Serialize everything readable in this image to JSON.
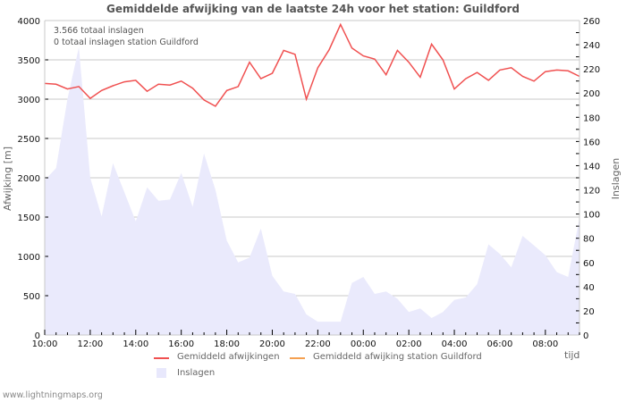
{
  "header": {
    "title": "Gemiddelde afwijking van de laatste 24h voor het station: Guildford"
  },
  "info": {
    "line1": "3.566 totaal inslagen",
    "line2": "0 totaal inslagen station Guildford"
  },
  "axes": {
    "left_title": "Afwijking  [m]",
    "right_title": "Inslagen",
    "x_title": "tijd"
  },
  "legend": {
    "items": [
      {
        "label": "Gemiddeld afwijkingen",
        "color": "#f05050"
      },
      {
        "label": "Gemiddeld afwijking station Guildford",
        "color": "#f5a050"
      },
      {
        "label": "Inslagen",
        "color": "#e8e8fc"
      }
    ]
  },
  "footer": {
    "credit": "www.lightningmaps.org"
  },
  "colors": {
    "deviation_line": "#f05050",
    "station_line": "#f5a050",
    "strikes_area": "#eaeafc",
    "grid": "#c8c8c8"
  },
  "chart_data": {
    "type": "line",
    "title": "Gemiddelde afwijking van de laatste 24h voor het station: Guildford",
    "xlabel": "tijd",
    "ylabel": "Afwijking  [m]",
    "y2label": "Inslagen",
    "ylim": [
      0,
      4000
    ],
    "y2lim": [
      0,
      260
    ],
    "grid": true,
    "legend_position": "bottom",
    "x_tick_labels": [
      "10:00",
      "12:00",
      "14:00",
      "16:00",
      "18:00",
      "20:00",
      "22:00",
      "00:00",
      "02:00",
      "04:00",
      "06:00",
      "08:00"
    ],
    "y_ticks": [
      0,
      500,
      1000,
      1500,
      2000,
      2500,
      3000,
      3500,
      4000
    ],
    "y2_ticks": [
      0,
      20,
      40,
      60,
      80,
      100,
      120,
      140,
      160,
      180,
      200,
      220,
      240,
      260
    ],
    "x_hours": [
      0,
      0.5,
      1,
      1.5,
      2,
      2.5,
      3,
      3.5,
      4,
      4.5,
      5,
      5.5,
      6,
      6.5,
      7,
      7.5,
      8,
      8.5,
      9,
      9.5,
      10,
      10.5,
      11,
      11.5,
      12,
      12.5,
      13,
      13.5,
      14,
      14.5,
      15,
      15.5,
      16,
      16.5,
      17,
      17.5,
      18,
      18.5,
      19,
      19.5,
      20,
      20.5,
      21,
      21.5,
      22,
      22.5,
      23,
      23.5
    ],
    "series": [
      {
        "name": "Gemiddeld afwijkingen",
        "axis": "left",
        "color": "#f05050",
        "values": [
          3200,
          3190,
          3130,
          3160,
          3010,
          3110,
          3170,
          3220,
          3240,
          3100,
          3190,
          3180,
          3230,
          3140,
          2990,
          2910,
          3110,
          3160,
          3470,
          3260,
          3330,
          3620,
          3570,
          3000,
          3400,
          3630,
          3950,
          3650,
          3550,
          3510,
          3310,
          3620,
          3470,
          3280,
          3700,
          3500,
          3130,
          3260,
          3340,
          3240,
          3370,
          3400,
          3290,
          3230,
          3350,
          3370,
          3360,
          3290
        ]
      },
      {
        "name": "Gemiddeld afwijking station Guildford",
        "axis": "left",
        "color": "#f5a050",
        "values": []
      },
      {
        "name": "Inslagen",
        "axis": "right",
        "type": "area",
        "color": "#e8e8fc",
        "values": [
          128,
          138,
          195,
          238,
          130,
          98,
          142,
          118,
          94,
          122,
          111,
          112,
          134,
          106,
          150,
          120,
          78,
          60,
          64,
          88,
          49,
          36,
          34,
          17,
          11,
          11,
          11,
          43,
          48,
          34,
          36,
          30,
          19,
          22,
          14,
          19,
          29,
          31,
          42,
          75,
          67,
          56,
          82,
          74,
          66,
          52,
          48,
          97
        ]
      }
    ]
  }
}
